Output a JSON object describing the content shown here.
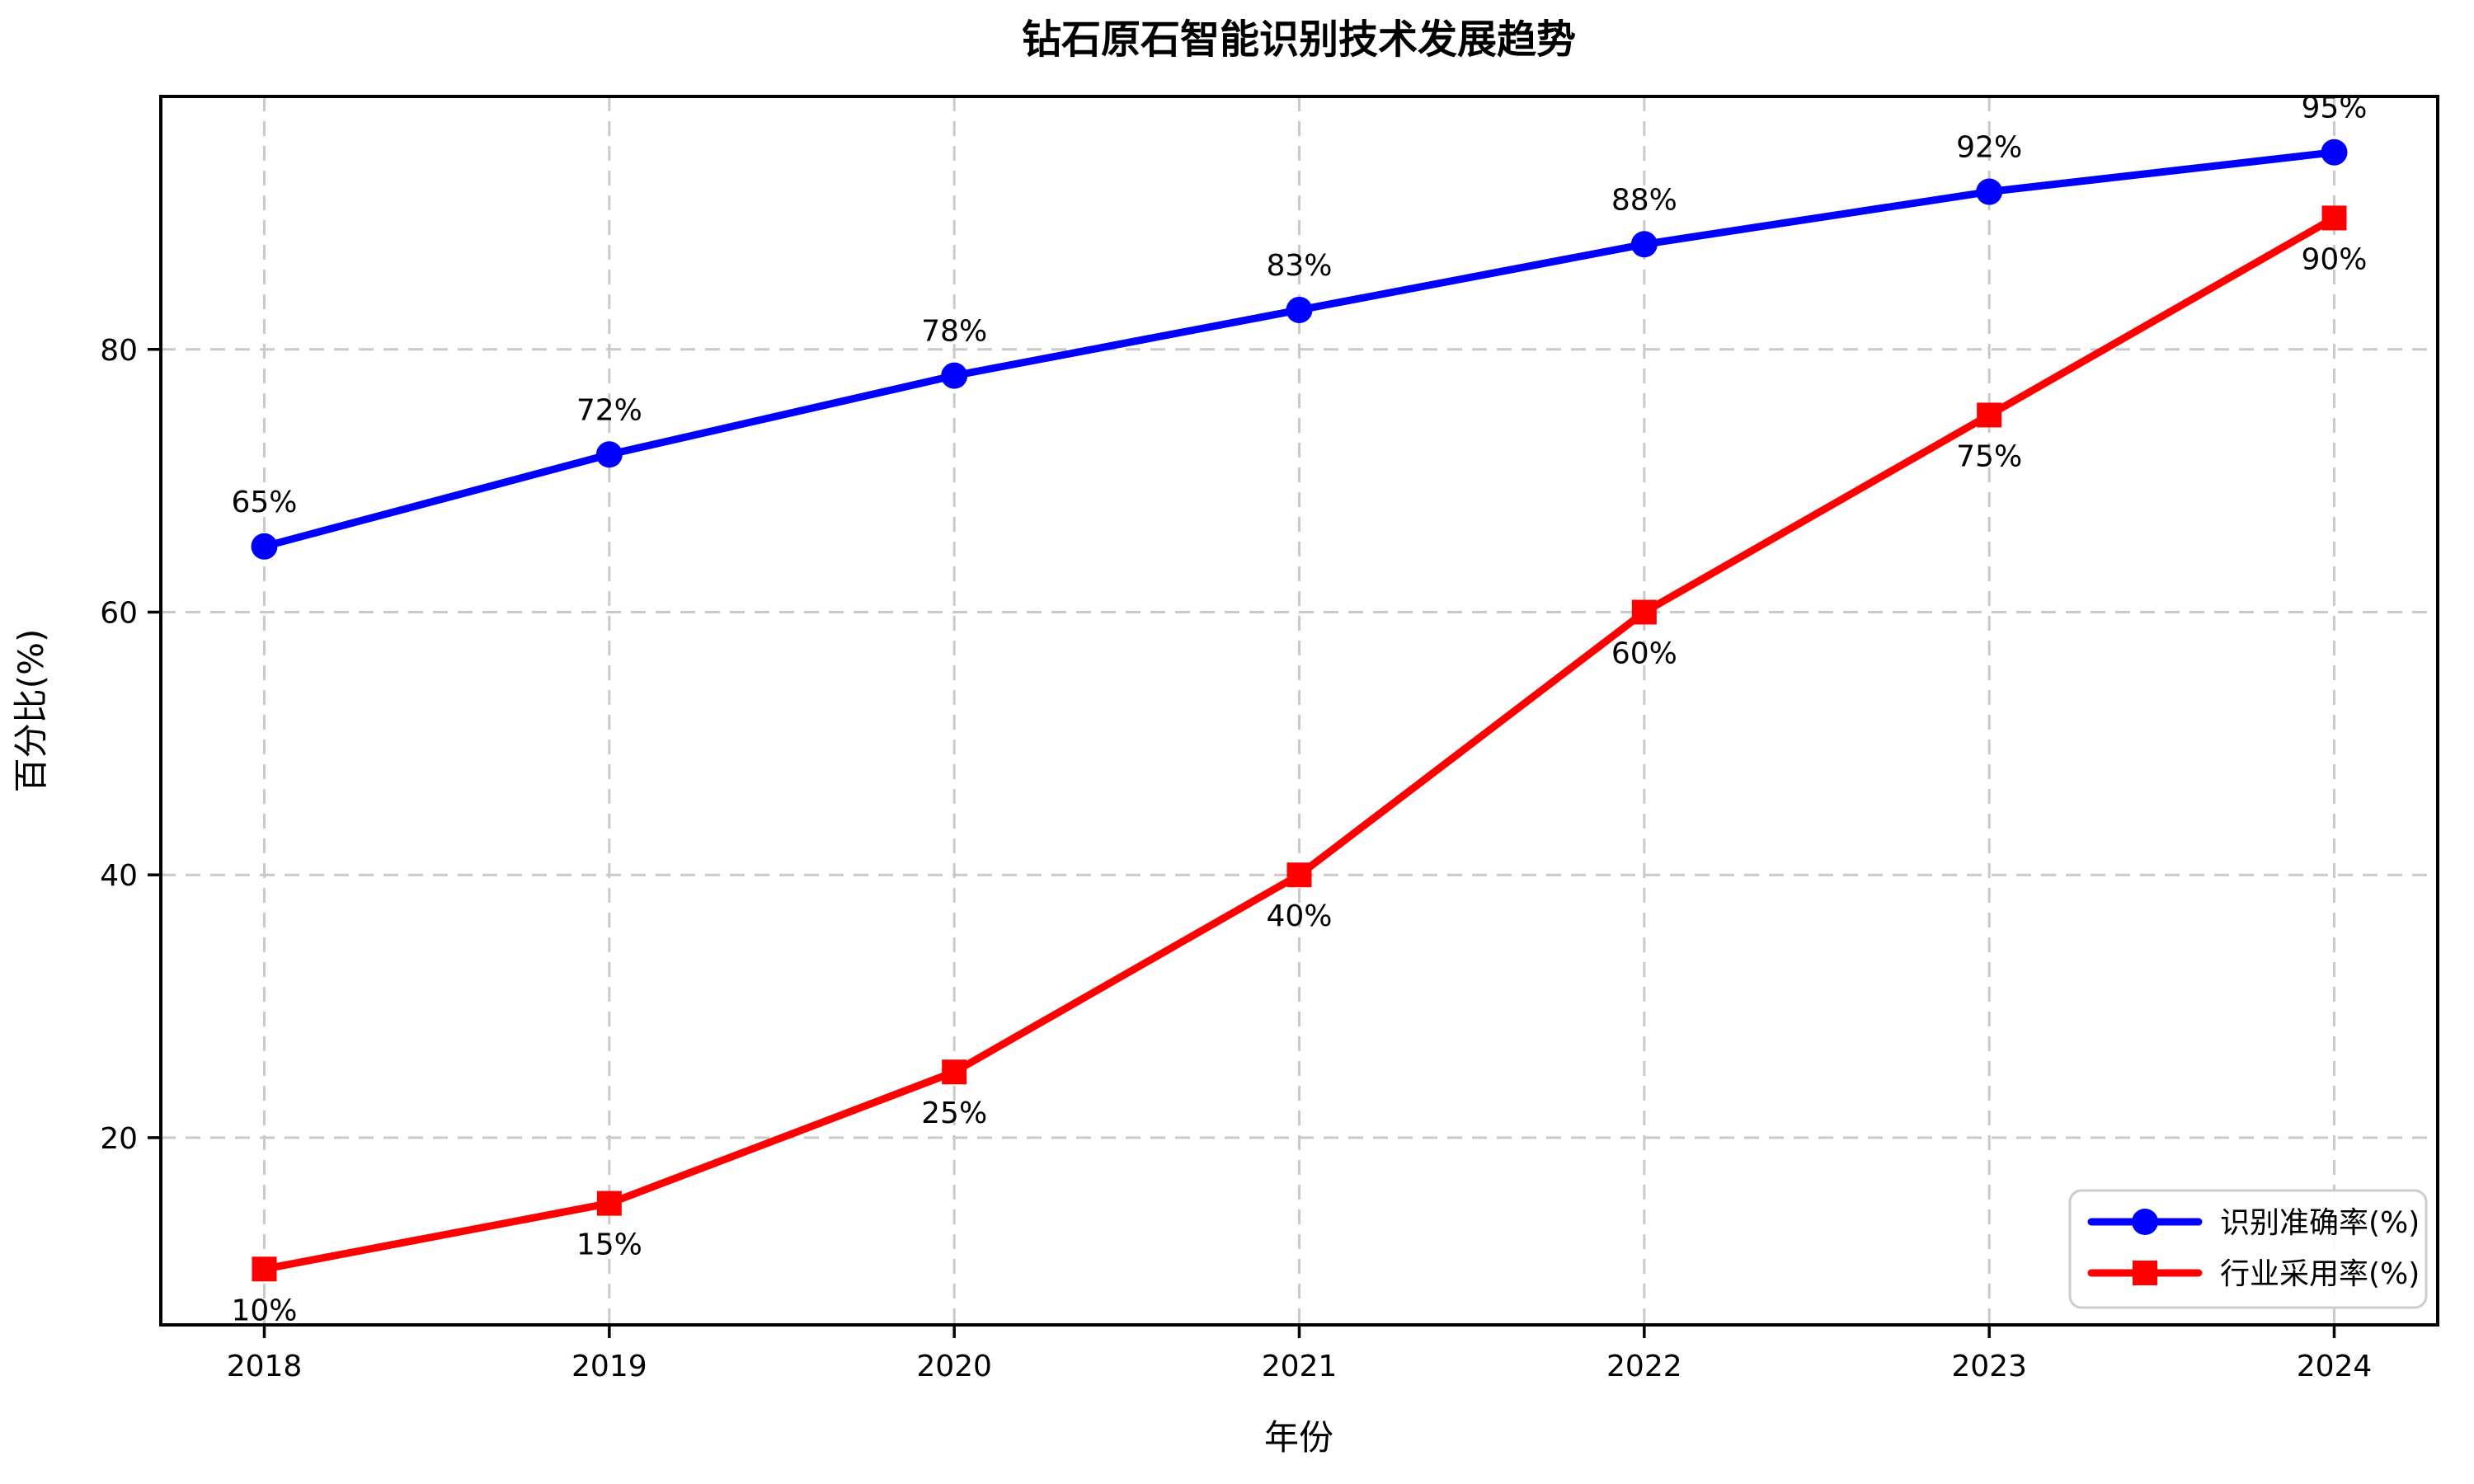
{
  "chart_data": {
    "type": "line",
    "title": "钻石原石智能识别技术发展趋势",
    "xlabel": "年份",
    "ylabel": "百分比(%)",
    "categories": [
      "2018",
      "2019",
      "2020",
      "2021",
      "2022",
      "2023",
      "2024"
    ],
    "x_values": [
      2018,
      2019,
      2020,
      2021,
      2022,
      2023,
      2024
    ],
    "series": [
      {
        "name": "识别准确率(%)",
        "color": "#0000ff",
        "marker": "circle",
        "values": [
          65,
          72,
          78,
          83,
          88,
          92,
          95
        ],
        "point_labels": [
          "65%",
          "72%",
          "78%",
          "83%",
          "88%",
          "92%",
          "95%"
        ],
        "label_side": "above"
      },
      {
        "name": "行业采用率(%)",
        "color": "#ff0000",
        "marker": "square",
        "values": [
          10,
          15,
          25,
          40,
          60,
          75,
          90
        ],
        "point_labels": [
          "10%",
          "15%",
          "25%",
          "40%",
          "60%",
          "75%",
          "90%"
        ],
        "label_side": "below"
      }
    ],
    "xlim": [
      2017.7,
      2024.3
    ],
    "ylim": [
      5.75,
      99.25
    ],
    "yticks": [
      20,
      40,
      60,
      80
    ],
    "grid": true,
    "grid_style": "dashed",
    "legend_position": "lower-right",
    "colors": {
      "grid": "#c9c9c9",
      "spine": "#000000",
      "text": "#000000",
      "legend_border": "#cccccc",
      "background": "#ffffff"
    }
  }
}
